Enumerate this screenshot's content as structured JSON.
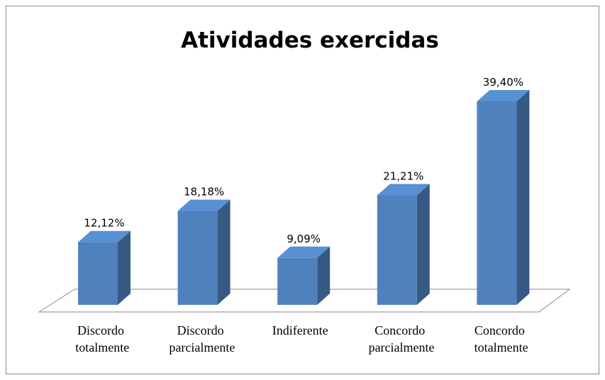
{
  "chart_data": {
    "type": "bar",
    "title": "Atividades exercidas",
    "categories": [
      "Discordo totalmente",
      "Discordo parcialmente",
      "Indiferente",
      "Concordo parcialmente",
      "Concordo totalmente"
    ],
    "values": [
      12.12,
      18.18,
      9.09,
      21.21,
      39.4
    ],
    "value_labels": [
      "12,12%",
      "18,18%",
      "9,09%",
      "21,21%",
      "39,40%"
    ],
    "color": "#4f81bd"
  }
}
